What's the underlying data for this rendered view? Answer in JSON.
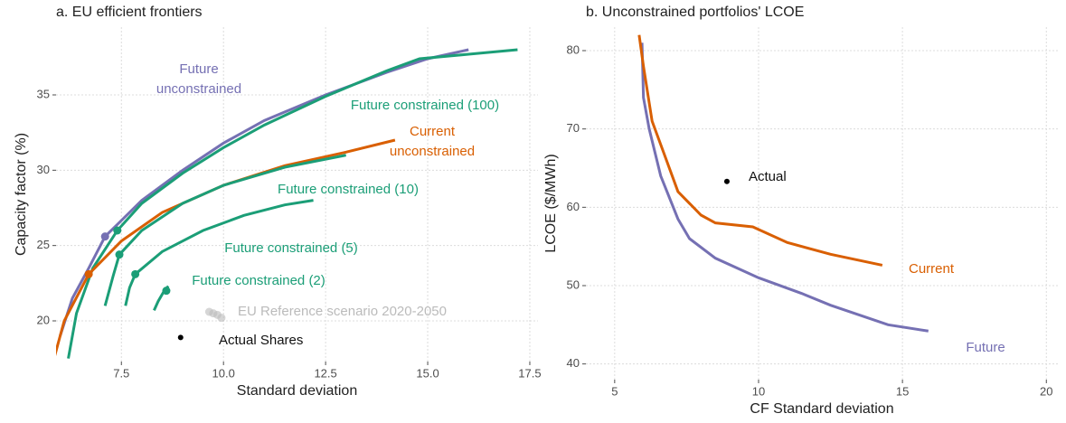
{
  "chart_data": [
    {
      "type": "line",
      "title": "a. EU efficient frontiers",
      "x_label": "Standard deviation",
      "y_label": "Capacity factor (%)",
      "xlim": [
        5.9,
        17.7
      ],
      "ylim": [
        17.3,
        39.5
      ],
      "grid": true,
      "xticks": [
        7.5,
        {
          "value": 10,
          "label": "10.0"
        },
        12.5,
        {
          "value": 15,
          "label": "15.0"
        },
        17.5
      ],
      "yticks": [
        20,
        25,
        30,
        35
      ],
      "series": [
        {
          "name": "Future unconstrained",
          "color": "#7570b3",
          "x": [
            6.0,
            6.3,
            6.7,
            7.1,
            8,
            9,
            10,
            11,
            12.5,
            14,
            15,
            16
          ],
          "values": [
            19,
            21.5,
            23.5,
            25.6,
            28,
            30,
            31.8,
            33.3,
            35,
            36.5,
            37.4,
            38.0
          ],
          "marker_x": 7.1,
          "marker_y": 25.6
        },
        {
          "name": "Future constrained (100)",
          "color": "#1b9e77",
          "x": [
            6.2,
            6.4,
            6.8,
            7.4,
            8,
            9,
            10,
            11,
            12.5,
            14,
            14.8,
            16,
            17.2
          ],
          "values": [
            17.5,
            20.5,
            23.5,
            26,
            27.8,
            29.8,
            31.5,
            33,
            34.9,
            36.6,
            37.4,
            37.7,
            38.0
          ],
          "marker_x": 7.4,
          "marker_y": 26.0
        },
        {
          "name": "Current unconstrained",
          "color": "#d95f02",
          "x": [
            5.85,
            6.1,
            6.7,
            7.5,
            8.5,
            10,
            11.5,
            13,
            14.2
          ],
          "values": [
            17.5,
            20,
            23.1,
            25.3,
            27.2,
            29,
            30.3,
            31.2,
            32
          ],
          "marker_x": 6.7,
          "marker_y": 23.1
        },
        {
          "name": "Future constrained (10)",
          "color": "#1b9e77",
          "x": [
            7.1,
            7.3,
            7.45,
            8,
            9,
            10,
            11.5,
            13.0
          ],
          "values": [
            21,
            23,
            24.4,
            26,
            27.8,
            29,
            30.2,
            31
          ],
          "marker_x": 7.45,
          "marker_y": 24.4
        },
        {
          "name": "Future constrained (5)",
          "color": "#1b9e77",
          "x": [
            7.6,
            7.7,
            7.84,
            8.5,
            9.5,
            10.5,
            11.5,
            12.2
          ],
          "values": [
            21,
            22.2,
            23.1,
            24.6,
            26,
            27,
            27.7,
            28
          ],
          "marker_x": 7.84,
          "marker_y": 23.1
        },
        {
          "name": "Future constrained (2)",
          "color": "#1b9e77",
          "x": [
            8.3,
            8.4,
            8.55,
            8.65
          ],
          "values": [
            20.7,
            21.3,
            22,
            22.3
          ],
          "marker_x": 8.6,
          "marker_y": 22.0
        }
      ],
      "points": [
        {
          "name": "EU Reference scenario 2020-2050",
          "color": "#bbbbbb",
          "x": [
            9.65,
            9.75,
            9.85,
            9.95
          ],
          "values": [
            20.6,
            20.5,
            20.4,
            20.2
          ]
        },
        {
          "name": "Actual Shares",
          "color": "#000000",
          "x": [
            8.95
          ],
          "values": [
            18.9
          ]
        }
      ]
    },
    {
      "type": "line",
      "title": "b. Unconstrained portfolios' LCOE",
      "x_label": "CF Standard deviation",
      "y_label": "LCOE ($/MWh)",
      "xlim": [
        4.0,
        20.4
      ],
      "ylim": [
        38,
        83
      ],
      "grid": true,
      "xticks": [
        5,
        10,
        15,
        20
      ],
      "yticks": [
        40,
        50,
        60,
        70,
        80
      ],
      "series": [
        {
          "name": "Future",
          "color": "#7570b3",
          "x": [
            5.95,
            6.0,
            6.2,
            6.6,
            7.2,
            7.6,
            8.5,
            10,
            11.5,
            12.5,
            14.5,
            15.9
          ],
          "values": [
            81,
            74,
            70,
            64,
            58.5,
            56,
            53.5,
            51,
            49,
            47.5,
            45,
            44.2
          ]
        },
        {
          "name": "Current",
          "color": "#d95f02",
          "x": [
            5.85,
            6.0,
            6.3,
            6.7,
            7.2,
            8,
            8.5,
            9.8,
            11,
            12.5,
            14.3
          ],
          "values": [
            82,
            78,
            71,
            67,
            62,
            59,
            58,
            57.5,
            55.5,
            54,
            52.6
          ]
        }
      ],
      "points": [
        {
          "name": "Actual",
          "color": "#000000",
          "x": [
            8.9
          ],
          "values": [
            63.3
          ]
        }
      ]
    }
  ]
}
